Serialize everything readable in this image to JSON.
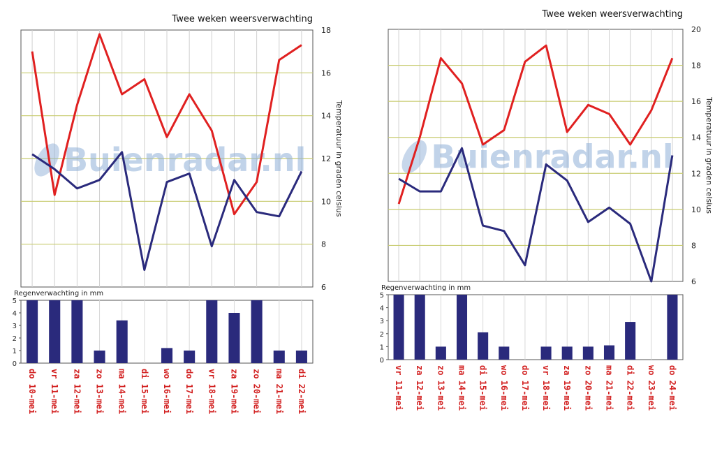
{
  "chart_data": [
    {
      "type": "line",
      "title": "Twee weken weersverwachting",
      "ylabel": "Temperatuur in graden celsius",
      "ylim": [
        6,
        18
      ],
      "yticks": [
        "18",
        "16",
        "14",
        "12",
        "10",
        "8",
        "6"
      ],
      "categories": [
        "do 10-mei",
        "vr 11-mei",
        "za 12-mei",
        "zo 13-mei",
        "ma 14-mei",
        "di 15-mei",
        "wo 16-mei",
        "do 17-mei",
        "vr 18-mei",
        "za 19-mei",
        "zo 20-mei",
        "ma 21-mei",
        "di 22-mei"
      ],
      "series": [
        {
          "color": "#e02020",
          "values": [
            17.0,
            10.3,
            14.5,
            17.8,
            15.0,
            15.7,
            13.0,
            15.0,
            13.3,
            9.4,
            10.9,
            16.6,
            17.3
          ]
        },
        {
          "color": "#2a2a7c",
          "values": [
            12.2,
            11.5,
            10.6,
            11.0,
            12.3,
            6.8,
            10.9,
            11.3,
            7.9,
            11.0,
            9.5,
            9.3,
            11.4
          ]
        }
      ],
      "rain": {
        "label": "Regenverwachting in mm",
        "ylim": [
          0,
          5
        ],
        "yticks": [
          "5",
          "4",
          "3",
          "2",
          "1",
          "0"
        ],
        "color": "#2a2a7c",
        "values": [
          5,
          5,
          5,
          1,
          3.4,
          0,
          1.2,
          1,
          5,
          4,
          5,
          1,
          1
        ]
      },
      "watermark": "Buienradar.nl"
    },
    {
      "type": "line",
      "title": "Twee weken weersverwachting",
      "ylabel": "Temperatuur in graden celsius",
      "ylim": [
        6,
        20
      ],
      "yticks": [
        "20",
        "18",
        "16",
        "14",
        "12",
        "10",
        "8",
        "6"
      ],
      "categories": [
        "vr 11-mei",
        "za 12-mei",
        "zo 13-mei",
        "ma 14-mei",
        "di 15-mei",
        "wo 16-mei",
        "do 17-mei",
        "vr 18-mei",
        "za 19-mei",
        "zo 20-mei",
        "ma 21-mei",
        "di 22-mei",
        "wo 23-mei",
        "do 24-mei"
      ],
      "series": [
        {
          "color": "#e02020",
          "values": [
            10.3,
            14.0,
            18.4,
            17.0,
            13.6,
            14.4,
            18.2,
            19.1,
            14.3,
            15.8,
            15.3,
            13.6,
            15.5,
            18.4
          ]
        },
        {
          "color": "#2a2a7c",
          "values": [
            11.7,
            11.0,
            11.0,
            13.4,
            9.1,
            8.8,
            6.9,
            12.5,
            11.6,
            9.3,
            10.1,
            9.2,
            6.0,
            13.0
          ]
        }
      ],
      "rain": {
        "label": "Regenverwachting in mm",
        "ylim": [
          0,
          5
        ],
        "yticks": [
          "5",
          "4",
          "3",
          "2",
          "1",
          "0"
        ],
        "color": "#2a2a7c",
        "values": [
          5,
          5,
          1,
          5,
          2.1,
          1,
          0,
          1,
          1,
          1,
          1.1,
          2.9,
          0,
          5
        ]
      },
      "watermark": "Buienradar.nl"
    }
  ]
}
